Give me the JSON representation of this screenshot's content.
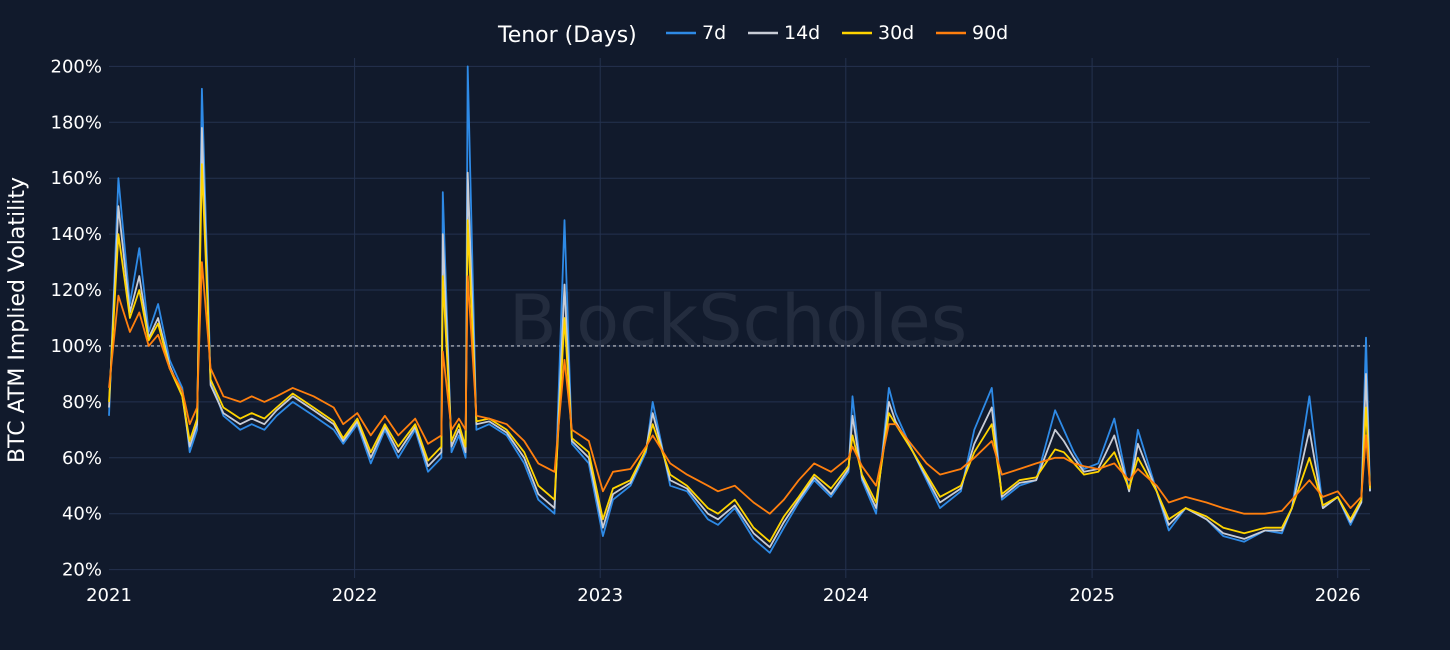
{
  "chart_data": {
    "type": "line",
    "title": "",
    "ylabel": "BTC ATM Implied Volatility",
    "xlabel": "",
    "ylim": [
      17,
      203
    ],
    "xlim": [
      "2021-01-01",
      "2026-02-18"
    ],
    "grid": true,
    "legend_position": "top",
    "legend_title": "Tenor (Days)",
    "watermark": "BlockScholes",
    "background_color": "#111a2c",
    "grid_color": "#24324f",
    "reference_line": {
      "y": 100,
      "style": "dotted",
      "color": "#c9ccd3"
    },
    "x_ticks": [
      {
        "label": "2021",
        "date": "2021-01-01"
      },
      {
        "label": "2022",
        "date": "2022-01-01"
      },
      {
        "label": "2023",
        "date": "2023-01-01"
      },
      {
        "label": "2024",
        "date": "2024-01-01"
      },
      {
        "label": "2025",
        "date": "2025-01-01"
      },
      {
        "label": "2026",
        "date": "2026-01-01"
      }
    ],
    "y_ticks": [
      {
        "label": "20%",
        "value": 20
      },
      {
        "label": "40%",
        "value": 40
      },
      {
        "label": "60%",
        "value": 60
      },
      {
        "label": "80%",
        "value": 80
      },
      {
        "label": "100%",
        "value": 100
      },
      {
        "label": "120%",
        "value": 120
      },
      {
        "label": "140%",
        "value": 140
      },
      {
        "label": "160%",
        "value": 160
      },
      {
        "label": "180%",
        "value": 180
      },
      {
        "label": "200%",
        "value": 200
      }
    ],
    "x": [
      "2021-01-01",
      "2021-01-15",
      "2021-02-01",
      "2021-02-15",
      "2021-03-01",
      "2021-03-15",
      "2021-04-01",
      "2021-04-20",
      "2021-05-01",
      "2021-05-12",
      "2021-05-19",
      "2021-06-01",
      "2021-06-20",
      "2021-07-15",
      "2021-08-01",
      "2021-08-20",
      "2021-09-07",
      "2021-10-01",
      "2021-11-01",
      "2021-12-01",
      "2021-12-15",
      "2022-01-05",
      "2022-01-25",
      "2022-02-15",
      "2022-03-07",
      "2022-04-01",
      "2022-04-20",
      "2022-05-10",
      "2022-05-12",
      "2022-05-25",
      "2022-06-05",
      "2022-06-15",
      "2022-06-18",
      "2022-07-01",
      "2022-07-20",
      "2022-08-15",
      "2022-09-10",
      "2022-10-01",
      "2022-10-25",
      "2022-11-09",
      "2022-11-20",
      "2022-12-15",
      "2023-01-05",
      "2023-01-20",
      "2023-02-15",
      "2023-03-10",
      "2023-03-20",
      "2023-04-15",
      "2023-05-10",
      "2023-06-10",
      "2023-06-25",
      "2023-07-20",
      "2023-08-17",
      "2023-09-10",
      "2023-10-01",
      "2023-10-23",
      "2023-11-15",
      "2023-12-10",
      "2024-01-05",
      "2024-01-11",
      "2024-01-25",
      "2024-02-15",
      "2024-03-05",
      "2024-03-15",
      "2024-04-10",
      "2024-04-30",
      "2024-05-20",
      "2024-06-20",
      "2024-07-10",
      "2024-08-05",
      "2024-08-20",
      "2024-09-15",
      "2024-10-10",
      "2024-11-07",
      "2024-11-20",
      "2024-12-05",
      "2024-12-20",
      "2025-01-10",
      "2025-02-03",
      "2025-02-25",
      "2025-03-10",
      "2025-04-07",
      "2025-04-25",
      "2025-05-20",
      "2025-06-20",
      "2025-07-15",
      "2025-08-15",
      "2025-09-15",
      "2025-10-10",
      "2025-10-25",
      "2025-11-20",
      "2025-12-10",
      "2026-01-01",
      "2026-01-20",
      "2026-02-05",
      "2026-02-12",
      "2026-02-18"
    ],
    "series": [
      {
        "name": "7d",
        "color": "#2e8ae6",
        "values": [
          75,
          160,
          115,
          135,
          105,
          115,
          95,
          85,
          62,
          70,
          192,
          88,
          75,
          70,
          72,
          70,
          75,
          80,
          75,
          70,
          65,
          72,
          58,
          70,
          60,
          70,
          55,
          60,
          155,
          62,
          68,
          60,
          200,
          70,
          72,
          68,
          58,
          45,
          40,
          145,
          65,
          58,
          32,
          45,
          50,
          62,
          80,
          50,
          48,
          38,
          36,
          42,
          31,
          26,
          35,
          44,
          52,
          46,
          55,
          82,
          52,
          40,
          85,
          76,
          62,
          52,
          42,
          48,
          70,
          85,
          45,
          50,
          52,
          77,
          70,
          62,
          56,
          58,
          74,
          48,
          70,
          48,
          34,
          42,
          38,
          32,
          30,
          34,
          33,
          42,
          82,
          42,
          46,
          36,
          44,
          103,
          48
        ]
      },
      {
        "name": "14d",
        "color": "#c8ccd6",
        "values": [
          78,
          150,
          112,
          125,
          103,
          110,
          93,
          82,
          64,
          72,
          178,
          86,
          76,
          72,
          74,
          72,
          77,
          82,
          77,
          72,
          66,
          73,
          60,
          71,
          62,
          71,
          57,
          62,
          140,
          64,
          70,
          62,
          162,
          72,
          73,
          69,
          60,
          47,
          42,
          122,
          66,
          60,
          35,
          47,
          51,
          63,
          76,
          52,
          49,
          40,
          38,
          43,
          33,
          28,
          37,
          45,
          53,
          47,
          56,
          75,
          53,
          42,
          80,
          73,
          62,
          53,
          44,
          49,
          65,
          78,
          46,
          51,
          52,
          70,
          66,
          60,
          55,
          56,
          68,
          48,
          65,
          48,
          36,
          42,
          38,
          33,
          31,
          34,
          34,
          42,
          70,
          42,
          46,
          37,
          44,
          90,
          48
        ]
      },
      {
        "name": "30d",
        "color": "#ffd400",
        "values": [
          80,
          140,
          110,
          120,
          102,
          108,
          92,
          82,
          66,
          74,
          165,
          88,
          78,
          74,
          76,
          74,
          78,
          83,
          78,
          73,
          67,
          74,
          62,
          72,
          64,
          72,
          59,
          64,
          125,
          66,
          72,
          64,
          145,
          73,
          74,
          70,
          62,
          50,
          45,
          110,
          67,
          62,
          38,
          49,
          52,
          63,
          72,
          54,
          50,
          42,
          40,
          45,
          35,
          30,
          39,
          46,
          54,
          49,
          57,
          68,
          54,
          44,
          76,
          72,
          62,
          54,
          46,
          50,
          62,
          72,
          47,
          52,
          53,
          63,
          62,
          58,
          54,
          55,
          62,
          49,
          60,
          48,
          38,
          42,
          39,
          35,
          33,
          35,
          35,
          42,
          60,
          43,
          46,
          38,
          45,
          78,
          49
        ]
      },
      {
        "name": "90d",
        "color": "#ff7f0e",
        "values": [
          85,
          118,
          105,
          112,
          100,
          104,
          92,
          84,
          72,
          78,
          130,
          92,
          82,
          80,
          82,
          80,
          82,
          85,
          82,
          78,
          72,
          76,
          68,
          75,
          68,
          74,
          65,
          68,
          98,
          70,
          74,
          70,
          125,
          75,
          74,
          72,
          66,
          58,
          55,
          95,
          70,
          66,
          48,
          55,
          56,
          64,
          68,
          58,
          54,
          50,
          48,
          50,
          44,
          40,
          45,
          52,
          58,
          55,
          60,
          64,
          57,
          50,
          72,
          72,
          64,
          58,
          54,
          56,
          60,
          66,
          54,
          56,
          58,
          60,
          60,
          58,
          57,
          56,
          58,
          52,
          56,
          50,
          44,
          46,
          44,
          42,
          40,
          40,
          41,
          45,
          52,
          46,
          48,
          42,
          46,
          68,
          50
        ]
      }
    ]
  }
}
